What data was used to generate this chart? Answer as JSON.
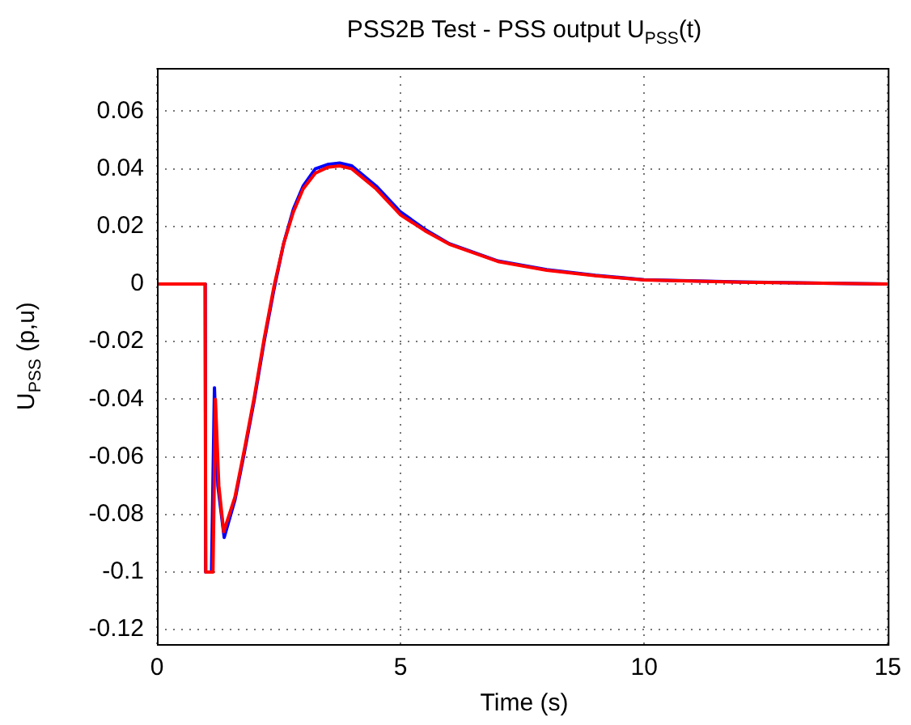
{
  "chart_data": {
    "type": "line",
    "title": "PSS2B Test - PSS output U$_{PSS}$(t)",
    "xlabel": "Time (s)",
    "ylabel": "U$_{PSS}$ (p,u)",
    "series": [
      {
        "color": "#0000ff",
        "x": [
          0,
          0.99,
          1.0,
          1.12,
          1.18,
          1.25,
          1.38,
          1.6,
          1.8,
          2.0,
          2.2,
          2.4,
          2.6,
          2.8,
          3.0,
          3.25,
          3.5,
          3.75,
          4.0,
          4.5,
          5.0,
          5.5,
          6.0,
          7.0,
          8.0,
          9.0,
          10.0,
          12.0,
          15.0
        ],
        "values": [
          0,
          0,
          -0.1,
          -0.1,
          -0.036,
          -0.07,
          -0.088,
          -0.075,
          -0.058,
          -0.04,
          -0.02,
          -0.002,
          0.014,
          0.026,
          0.034,
          0.04,
          0.0415,
          0.042,
          0.041,
          0.034,
          0.025,
          0.019,
          0.014,
          0.008,
          0.005,
          0.003,
          0.0015,
          0.0007,
          0
        ]
      },
      {
        "color": "#ff0000",
        "x": [
          0,
          0.99,
          1.0,
          1.15,
          1.2,
          1.27,
          1.37,
          1.6,
          1.8,
          2.0,
          2.2,
          2.4,
          2.6,
          2.8,
          3.0,
          3.25,
          3.5,
          3.75,
          4.0,
          4.5,
          5.0,
          5.5,
          6.0,
          7.0,
          8.0,
          9.0,
          10.0,
          12.0,
          15.0
        ],
        "values": [
          0,
          0,
          -0.1,
          -0.1,
          -0.04,
          -0.07,
          -0.086,
          -0.074,
          -0.057,
          -0.039,
          -0.019,
          -0.001,
          0.014,
          0.025,
          0.033,
          0.0385,
          0.0405,
          0.041,
          0.04,
          0.033,
          0.024,
          0.0185,
          0.0138,
          0.0078,
          0.0048,
          0.0029,
          0.0014,
          0.0006,
          0
        ]
      }
    ],
    "xlim": [
      0,
      15
    ],
    "xticks": [
      0,
      5,
      10,
      15
    ],
    "ylim": [
      -0.125,
      0.075
    ],
    "yticks": [
      -0.12,
      -0.1,
      -0.08,
      -0.06,
      -0.04,
      -0.02,
      0,
      0.02,
      0.04,
      0.06
    ],
    "grid": true,
    "line_style": "solid",
    "marker": "none"
  }
}
